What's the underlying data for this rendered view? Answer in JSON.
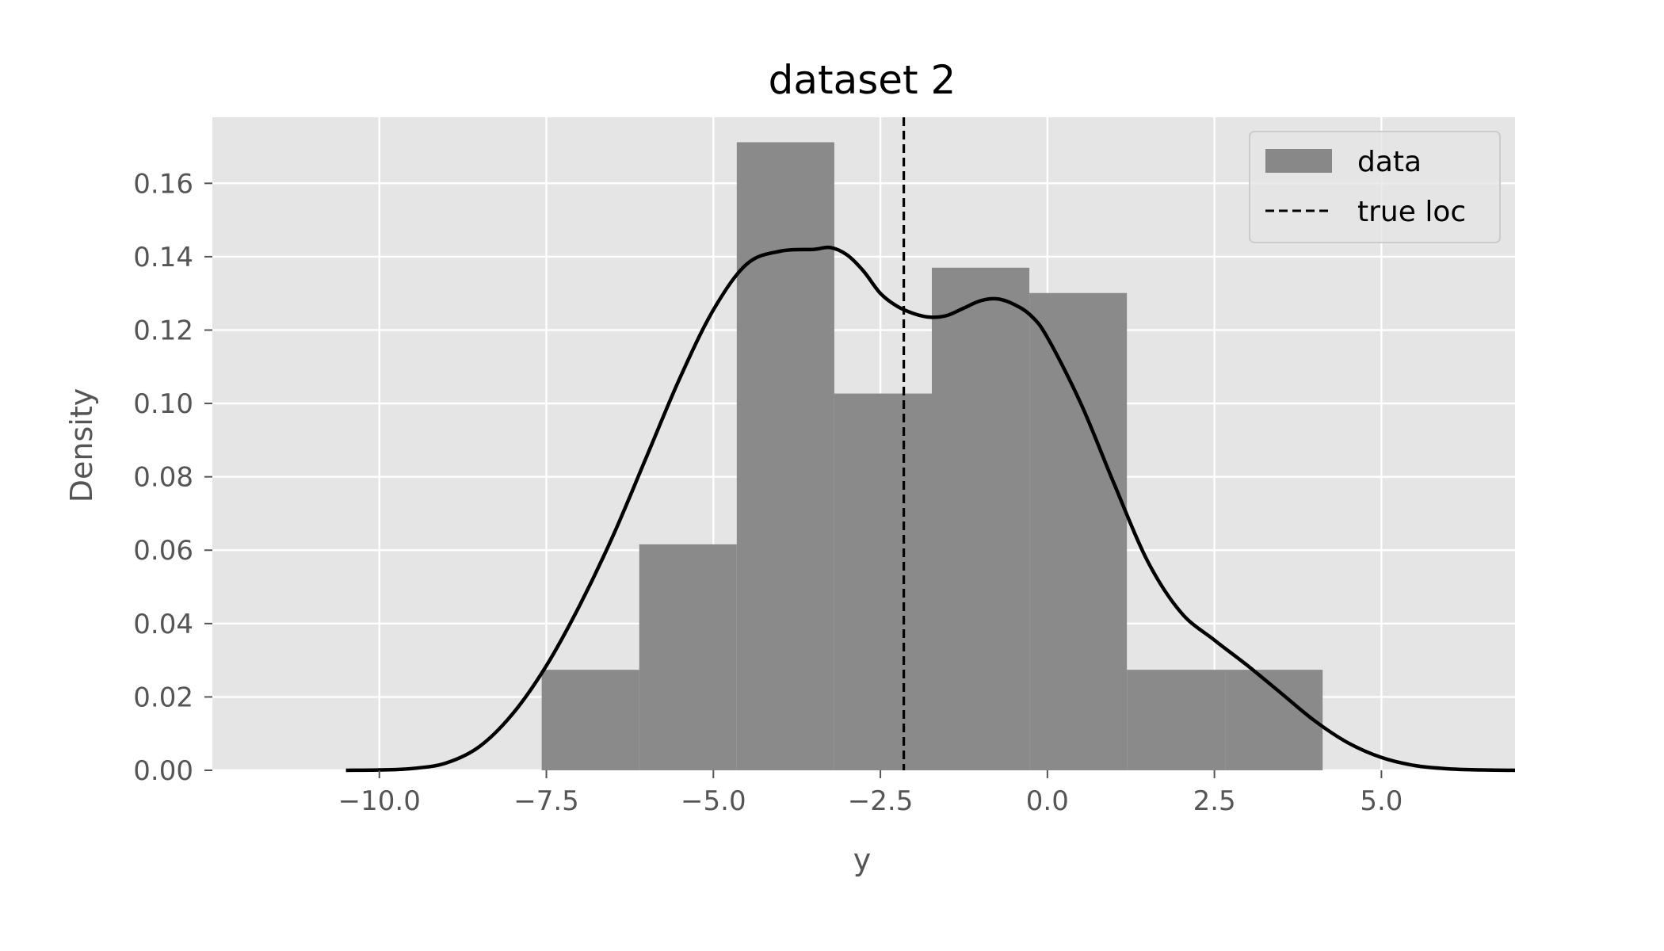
{
  "chart_data": {
    "type": "histogram+kde",
    "title": "dataset 2",
    "xlabel": "y",
    "ylabel": "Density",
    "xlim": [
      -12.5,
      7.0
    ],
    "ylim": [
      0.0,
      0.178
    ],
    "x_ticks": [
      -10.0,
      -7.5,
      -5.0,
      -2.5,
      0.0,
      2.5,
      5.0
    ],
    "x_tick_labels": [
      "−10.0",
      "−7.5",
      "−5.0",
      "−2.5",
      "0.0",
      "2.5",
      "5.0"
    ],
    "y_ticks": [
      0.0,
      0.02,
      0.04,
      0.06,
      0.08,
      0.1,
      0.12,
      0.14,
      0.16
    ],
    "y_tick_labels": [
      "0.00",
      "0.02",
      "0.04",
      "0.06",
      "0.08",
      "0.10",
      "0.12",
      "0.14",
      "0.16"
    ],
    "grid": true,
    "background": "#e5e5e5",
    "histogram": {
      "name": "data",
      "color": "#888888",
      "bins": [
        {
          "x0": -7.57,
          "x1": -6.11,
          "density": 0.0274
        },
        {
          "x0": -6.11,
          "x1": -4.65,
          "density": 0.0616
        },
        {
          "x0": -4.65,
          "x1": -3.19,
          "density": 0.1712
        },
        {
          "x0": -3.19,
          "x1": -1.73,
          "density": 0.1027
        },
        {
          "x0": -1.73,
          "x1": -0.27,
          "density": 0.137
        },
        {
          "x0": -0.27,
          "x1": 1.19,
          "density": 0.1301
        },
        {
          "x0": 1.19,
          "x1": 2.66,
          "density": 0.0274
        },
        {
          "x0": 2.66,
          "x1": 4.12,
          "density": 0.0274
        }
      ]
    },
    "kde": {
      "color": "#000000",
      "x": [
        -10.5,
        -10.0,
        -9.5,
        -9.0,
        -8.5,
        -8.0,
        -7.5,
        -7.0,
        -6.5,
        -6.0,
        -5.5,
        -5.0,
        -4.5,
        -4.0,
        -3.5,
        -3.25,
        -3.0,
        -2.75,
        -2.5,
        -2.25,
        -2.0,
        -1.75,
        -1.5,
        -1.25,
        -1.0,
        -0.75,
        -0.5,
        -0.25,
        0.0,
        0.5,
        1.0,
        1.5,
        2.0,
        2.5,
        3.0,
        3.5,
        4.0,
        4.5,
        5.0,
        5.5,
        6.0,
        6.5,
        7.0
      ],
      "y": [
        0.0,
        0.0001,
        0.0005,
        0.002,
        0.0065,
        0.0155,
        0.0285,
        0.045,
        0.064,
        0.0855,
        0.107,
        0.1255,
        0.138,
        0.1415,
        0.142,
        0.1425,
        0.1405,
        0.136,
        0.13,
        0.1265,
        0.1245,
        0.1235,
        0.124,
        0.126,
        0.128,
        0.1285,
        0.127,
        0.124,
        0.118,
        0.1,
        0.078,
        0.057,
        0.043,
        0.0355,
        0.0285,
        0.021,
        0.0135,
        0.0075,
        0.0035,
        0.0013,
        0.0004,
        0.0001,
        0.0
      ]
    },
    "true_loc": {
      "name": "true loc",
      "x": -2.15,
      "style": "dashed",
      "color": "#000000"
    },
    "legend": {
      "position": "top-right",
      "entries": [
        {
          "label": "data",
          "kind": "patch",
          "color": "#888888"
        },
        {
          "label": "true loc",
          "kind": "dashed-line",
          "color": "#000000"
        }
      ]
    }
  }
}
